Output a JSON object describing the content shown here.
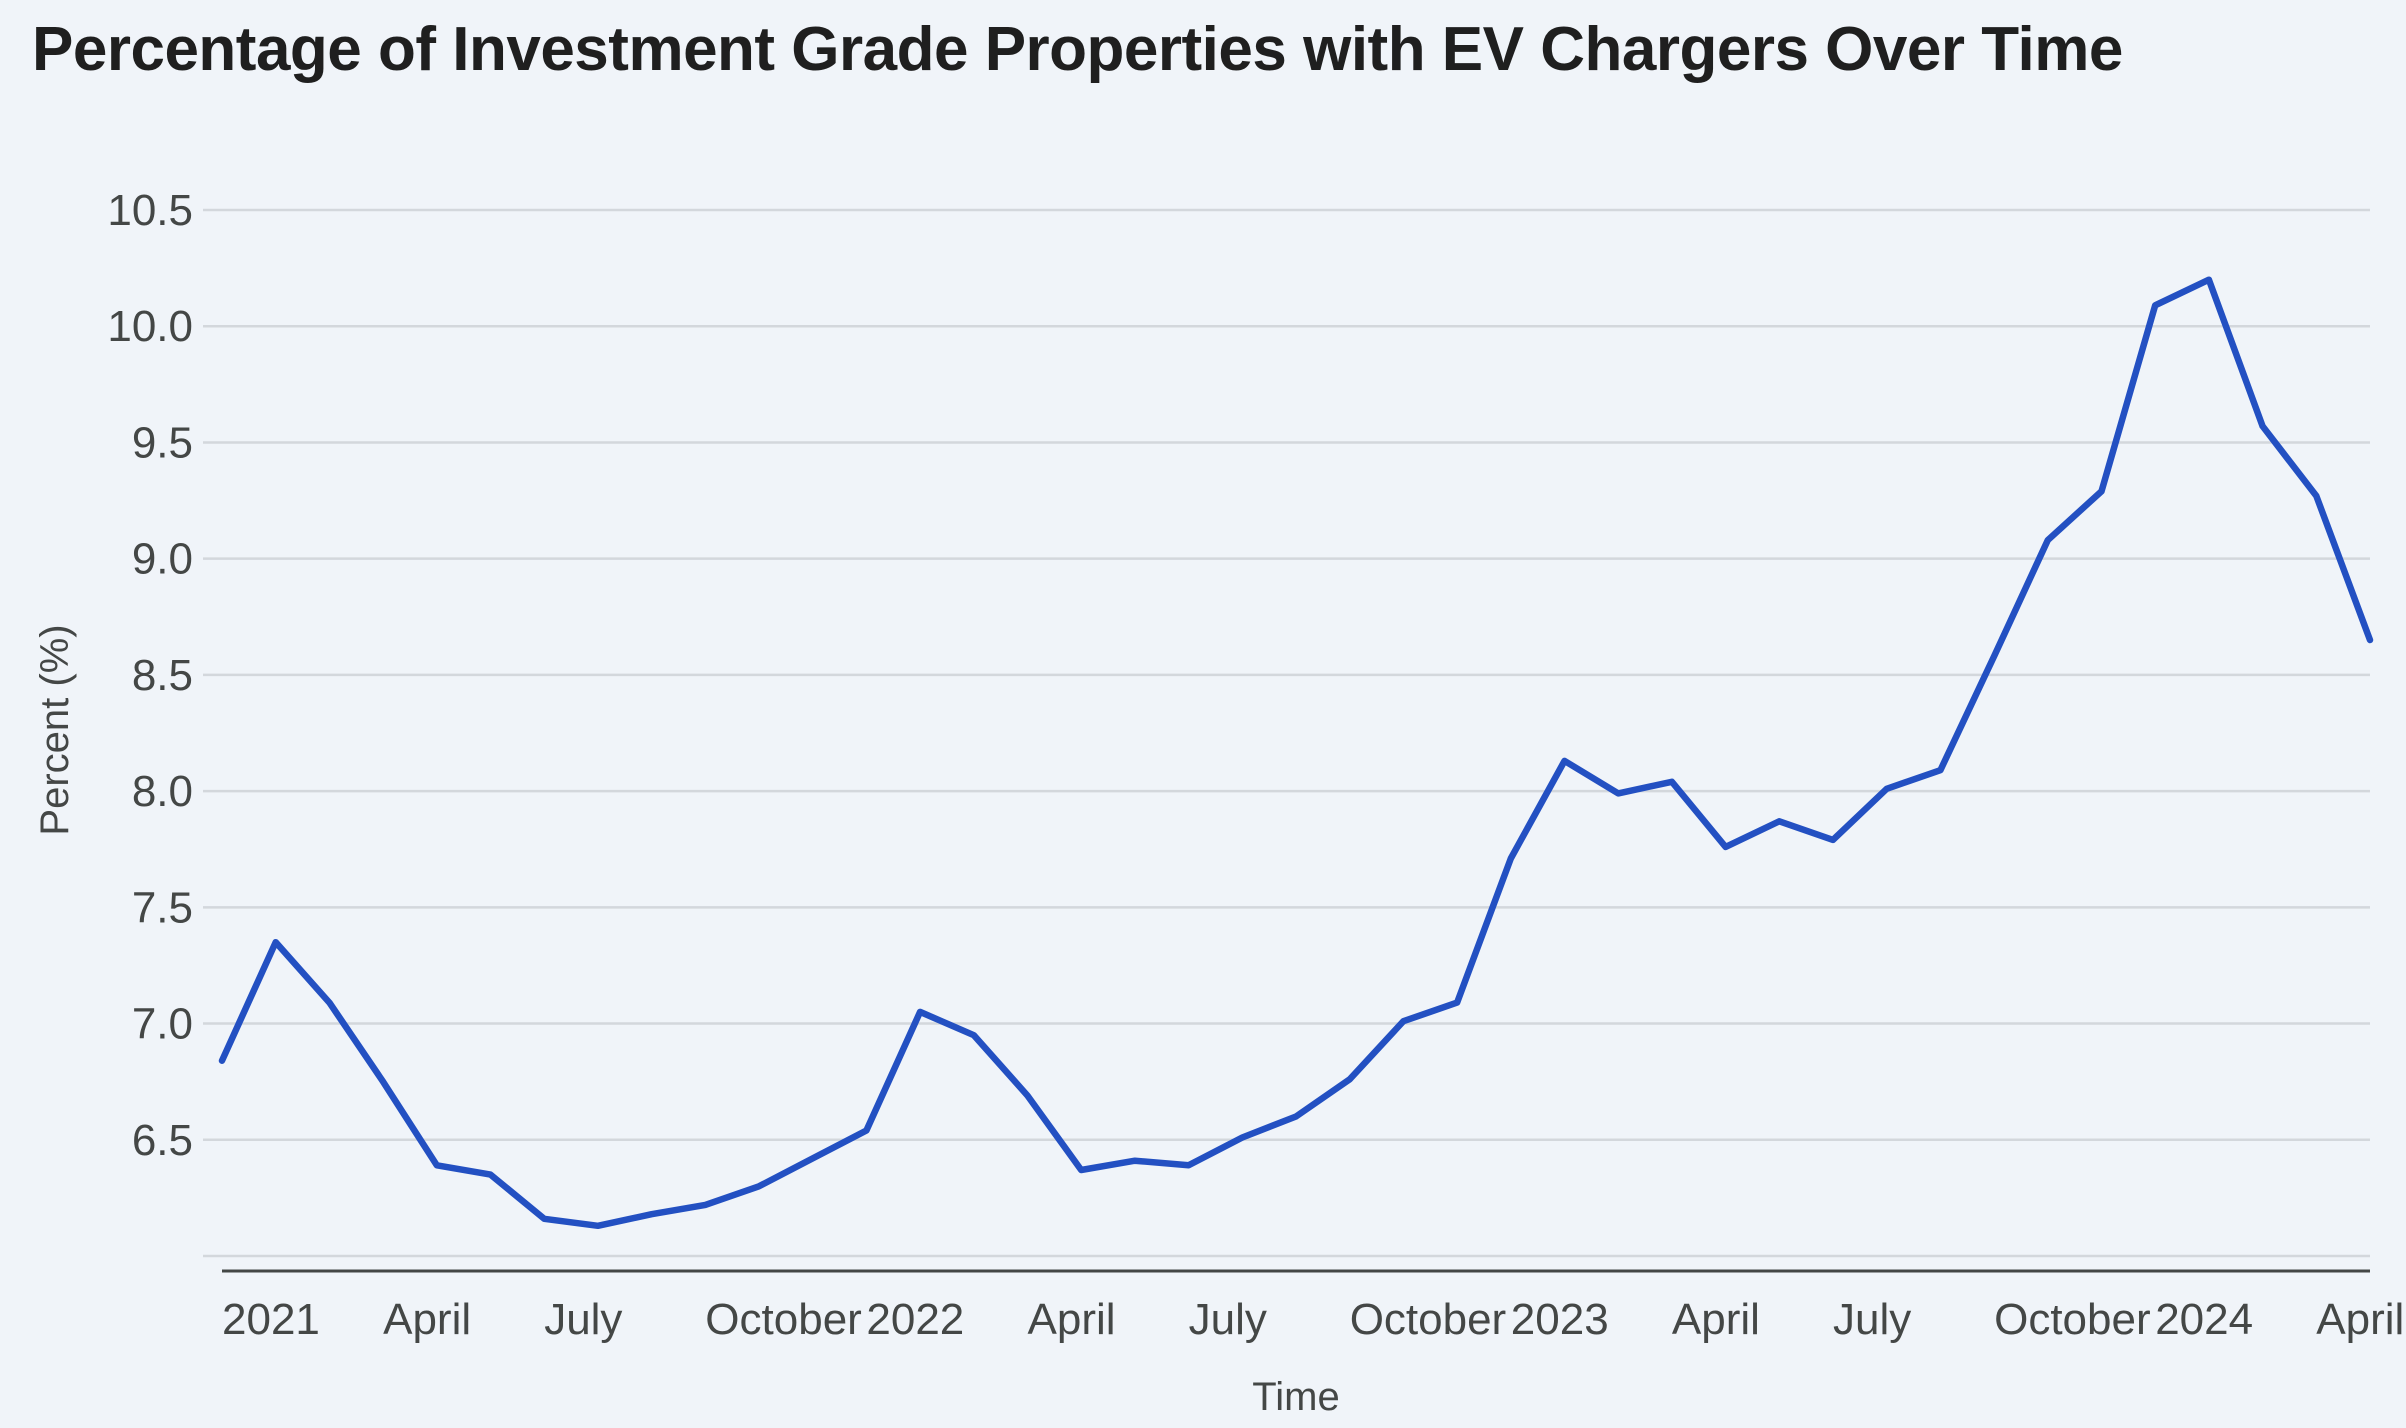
{
  "chart_data": {
    "type": "line",
    "title": "Percentage of Investment Grade Properties with EV Chargers Over Time",
    "xlabel": "Time",
    "ylabel": "Percent (%)",
    "ylim": [
      6.0,
      10.5
    ],
    "yticks": [
      6.5,
      7.0,
      7.5,
      8.0,
      8.5,
      9.0,
      9.5,
      10.0,
      10.5
    ],
    "ytick_labels": [
      "6.5",
      "7.0",
      "7.5",
      "8.0",
      "8.5",
      "9.0",
      "9.5",
      "10.0",
      "10.5"
    ],
    "grid": true,
    "x_month_range": [
      0,
      40
    ],
    "xtick_months": [
      0,
      3,
      6,
      9,
      12,
      15,
      18,
      21,
      24,
      27,
      30,
      33,
      36,
      39
    ],
    "xtick_labels": [
      "2021",
      "April",
      "July",
      "October",
      "2022",
      "April",
      "July",
      "October",
      "2023",
      "April",
      "July",
      "October",
      "2024",
      "April"
    ],
    "series": [
      {
        "name": "Percent (%)",
        "color": "#2350c2",
        "x_months": [
          0,
          1,
          2,
          3,
          4,
          5,
          6,
          7,
          8,
          9,
          10,
          11,
          12,
          13,
          14,
          15,
          16,
          17,
          18,
          19,
          20,
          21,
          22,
          23,
          24,
          25,
          26,
          27,
          28,
          29,
          30,
          31,
          32,
          33,
          34,
          35,
          36,
          37,
          38,
          39,
          40
        ],
        "values": [
          6.84,
          7.35,
          7.09,
          6.75,
          6.39,
          6.35,
          6.16,
          6.13,
          6.18,
          6.22,
          6.3,
          6.42,
          6.54,
          7.05,
          6.95,
          6.69,
          6.37,
          6.41,
          6.39,
          6.51,
          6.6,
          6.76,
          7.01,
          7.09,
          7.71,
          8.13,
          7.99,
          8.04,
          7.76,
          7.87,
          7.79,
          8.01,
          8.09,
          8.58,
          9.08,
          9.29,
          10.09,
          10.2,
          9.57,
          9.27,
          8.65
        ]
      }
    ]
  }
}
